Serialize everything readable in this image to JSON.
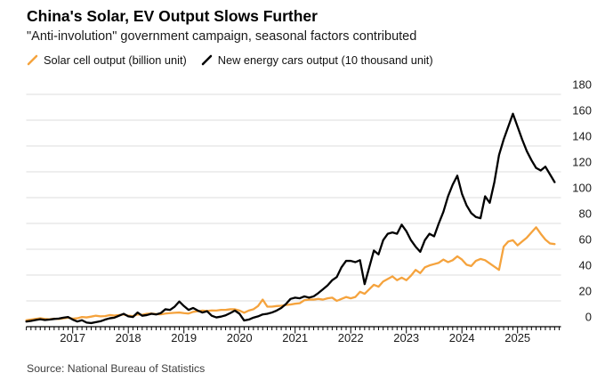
{
  "header": {
    "title": "China's Solar, EV Output Slows Further",
    "subtitle": "\"Anti-involution\" government campaign, seasonal factors contributed"
  },
  "legend": [
    {
      "label": "Solar cell output (billion unit)",
      "color": "#f5a33d"
    },
    {
      "label": "New energy cars output (10 thousand unit)",
      "color": "#000000"
    }
  ],
  "source": "Source: National Bureau of Statistics",
  "colors": {
    "solar_line": "#f5a33d",
    "nev_line": "#000000",
    "gridline": "#dcdcdc",
    "axis": "#000000",
    "tick_label": "#1a1a1a"
  },
  "chart_data": {
    "type": "line",
    "title": "China's Solar, EV Output Slows Further",
    "frequency": "monthly",
    "x_start": "2016-03",
    "x_end": "2025-09",
    "x_year_labels": [
      "2017",
      "2018",
      "2019",
      "2020",
      "2021",
      "2022",
      "2023",
      "2024",
      "2025"
    ],
    "y_ticks": [
      0,
      20,
      40,
      60,
      80,
      100,
      120,
      140,
      160,
      180
    ],
    "ylim": [
      0,
      180
    ],
    "grid": "horizontal",
    "legend_position": "top",
    "y_axis_side": "right",
    "series": [
      {
        "name": "Solar cell output (billion unit)",
        "color": "#f5a33d",
        "values": [
          5.0,
          5.5,
          6.0,
          6.5,
          6.0,
          5.8,
          6.2,
          6.0,
          6.5,
          7.0,
          6.2,
          6.5,
          7.5,
          7.2,
          7.8,
          8.5,
          8.0,
          8.2,
          9.0,
          8.6,
          9.0,
          9.5,
          8.5,
          8.2,
          9.5,
          9.2,
          10.0,
          10.2,
          9.8,
          9.6,
          10.2,
          10.5,
          10.8,
          11.0,
          10.5,
          10.2,
          11.5,
          12.0,
          12.5,
          12.2,
          12.6,
          12.5,
          13.0,
          13.0,
          13.5,
          13.5,
          12.5,
          10.8,
          12.5,
          13.5,
          16.0,
          21.0,
          15.5,
          15.5,
          16.0,
          16.2,
          16.8,
          17.2,
          17.8,
          18.2,
          20.5,
          21.0,
          21.0,
          21.5,
          21.0,
          22.0,
          22.5,
          20.0,
          21.5,
          23.0,
          22.0,
          23.0,
          27.0,
          25.5,
          29.0,
          32.5,
          31.0,
          35.0,
          37.0,
          39.0,
          36.0,
          38.0,
          36.0,
          39.5,
          44.0,
          41.5,
          46.0,
          47.5,
          48.5,
          49.5,
          52.0,
          50.0,
          51.5,
          54.5,
          52.0,
          48.0,
          47.0,
          51.0,
          52.5,
          51.5,
          49.0,
          46.5,
          44.0,
          62.0,
          66.0,
          67.0,
          63.0,
          66.0,
          69.0,
          73.0,
          77.0,
          72.0,
          67.5,
          64.5,
          64.0
        ]
      },
      {
        "name": "New energy cars output (10 thousand unit)",
        "color": "#000000",
        "values": [
          4.0,
          4.5,
          5.2,
          5.8,
          5.2,
          5.5,
          6.0,
          6.3,
          7.0,
          7.5,
          5.5,
          4.0,
          5.0,
          3.2,
          2.8,
          3.5,
          4.2,
          5.5,
          6.5,
          7.0,
          8.5,
          10.0,
          8.0,
          7.5,
          11.0,
          8.5,
          9.0,
          10.0,
          9.5,
          10.5,
          13.5,
          13.0,
          15.5,
          19.5,
          16.0,
          13.0,
          14.5,
          12.5,
          11.0,
          12.0,
          8.5,
          7.2,
          7.8,
          8.8,
          10.5,
          12.5,
          10.0,
          4.8,
          5.5,
          7.0,
          8.0,
          9.5,
          10.0,
          11.0,
          12.5,
          14.5,
          17.5,
          21.5,
          22.5,
          22.0,
          23.5,
          22.5,
          23.5,
          26.0,
          29.0,
          32.0,
          36.0,
          38.5,
          46.0,
          51.0,
          51.0,
          50.0,
          51.5,
          33.0,
          46.0,
          59.0,
          56.0,
          67.0,
          72.0,
          73.0,
          72.0,
          79.0,
          74.0,
          67.0,
          62.0,
          58.0,
          67.0,
          72.0,
          70.0,
          80.0,
          89.0,
          101.0,
          110.0,
          117.0,
          103.0,
          94.0,
          88.0,
          85.0,
          84.0,
          101.0,
          96.0,
          112.0,
          133.0,
          145.0,
          155.0,
          165.0,
          155.0,
          145.0,
          136.0,
          129.0,
          123.0,
          121.0,
          124.0,
          118.0,
          112.0
        ]
      }
    ]
  }
}
